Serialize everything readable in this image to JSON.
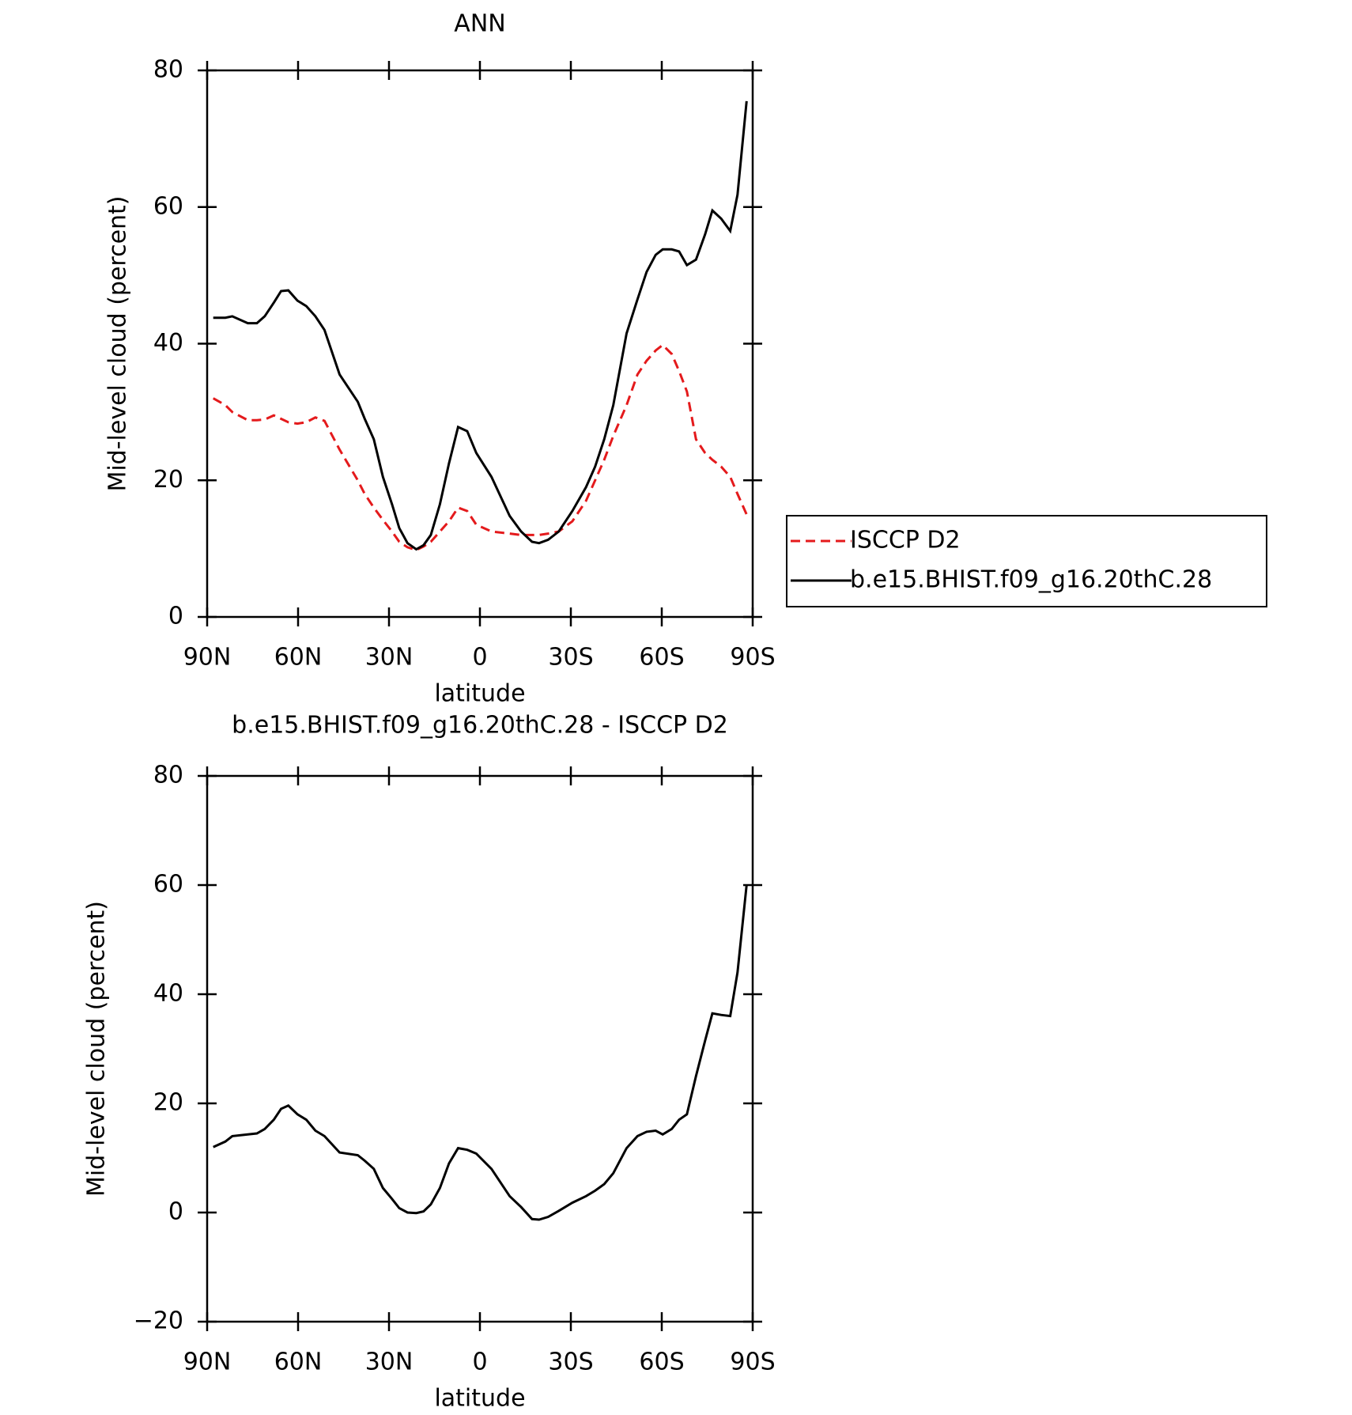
{
  "chart_data": [
    {
      "type": "line",
      "title": "ANN",
      "xlabel": "latitude",
      "ylabel": "Mid-level cloud (percent)",
      "x": [
        88,
        84,
        81.7,
        76.6,
        73.6,
        71,
        68,
        65.6,
        63.2,
        60.2,
        57.3,
        54.3,
        51.3,
        46.3,
        40.3,
        38,
        35,
        32,
        29,
        26.6,
        23.9,
        21,
        18.6,
        16.2,
        13.2,
        10.2,
        7.2,
        4.2,
        1.2,
        -3.8,
        -9.8,
        -13.6,
        -17.2,
        -19.5,
        -22.5,
        -26,
        -30.5,
        -35,
        -38,
        -41,
        -44,
        -48.4,
        -52,
        -55,
        -58,
        -60.3,
        -63.3,
        -65.7,
        -68.3,
        -71.3,
        -74.3,
        -76.7,
        -79.6,
        -82.6,
        -85,
        -88
      ],
      "xlim": [
        90,
        -90
      ],
      "xticks": [
        {
          "value": 90,
          "label": "90N"
        },
        {
          "value": 60,
          "label": "60N"
        },
        {
          "value": 30,
          "label": "30N"
        },
        0,
        {
          "value": -30,
          "label": "30S"
        },
        {
          "value": -60,
          "label": "60S"
        },
        {
          "value": -90,
          "label": "90S"
        }
      ],
      "ylim": [
        0,
        80
      ],
      "yticks": [
        0,
        20,
        40,
        60,
        80
      ],
      "series": [
        {
          "name": "ISCCP D2",
          "color": "#e41a1c",
          "dash": true,
          "values": [
            32,
            31,
            30,
            28.8,
            28.8,
            28.9,
            29.5,
            29,
            28.5,
            28.3,
            28.5,
            29.2,
            28.7,
            24.5,
            20,
            18,
            16,
            14.2,
            12.5,
            11,
            10.2,
            9.8,
            10.3,
            11,
            12.5,
            14,
            16,
            15.5,
            13.5,
            12.5,
            12.2,
            12,
            12,
            12,
            12.2,
            12.5,
            14,
            17,
            20,
            23,
            26.5,
            31,
            35.5,
            37.5,
            39,
            39.8,
            38.5,
            36,
            33,
            26,
            24,
            23,
            22,
            20.5,
            18,
            15
          ]
        },
        {
          "name": "b.e15.BHIST.f09_g16.20thC.28",
          "color": "#000000",
          "dash": false,
          "values": [
            43.8,
            43.8,
            44,
            43,
            43,
            44,
            46,
            47.7,
            47.8,
            46.3,
            45.5,
            44,
            42,
            35.5,
            31.5,
            29,
            26,
            20.5,
            16.5,
            13,
            10.8,
            9.9,
            10.5,
            12,
            16.5,
            22.5,
            27.8,
            27.2,
            24,
            20.5,
            14.8,
            12.5,
            11,
            10.8,
            11.3,
            12.5,
            15.5,
            19,
            22,
            26,
            31,
            41.5,
            46.5,
            50.5,
            53,
            53.8,
            53.8,
            53.5,
            51.5,
            52.3,
            56,
            59.5,
            58.3,
            56.5,
            61.8,
            75.5
          ]
        }
      ]
    },
    {
      "type": "line",
      "title": "b.e15.BHIST.f09_g16.20thC.28 - ISCCP D2",
      "xlabel": "latitude",
      "ylabel": "Mid-level cloud (percent)",
      "x": [
        88,
        84,
        81.7,
        76.6,
        73.6,
        71,
        68,
        65.6,
        63.2,
        60.2,
        57.3,
        54.3,
        51.3,
        46.3,
        40.3,
        38,
        35,
        32,
        29,
        26.6,
        23.9,
        21,
        18.6,
        16.2,
        13.2,
        10.2,
        7.2,
        4.2,
        1.2,
        -3.8,
        -9.8,
        -13.6,
        -17.2,
        -19.5,
        -22.5,
        -26,
        -30.5,
        -35,
        -38,
        -41,
        -44,
        -48.4,
        -52,
        -55,
        -58,
        -60.3,
        -63.3,
        -65.7,
        -68.3,
        -71.3,
        -74.3,
        -76.7,
        -79.6,
        -82.6,
        -85,
        -88
      ],
      "xlim": [
        90,
        -90
      ],
      "xticks": [
        {
          "value": 90,
          "label": "90N"
        },
        {
          "value": 60,
          "label": "60N"
        },
        {
          "value": 30,
          "label": "30N"
        },
        0,
        {
          "value": -30,
          "label": "30S"
        },
        {
          "value": -60,
          "label": "60S"
        },
        {
          "value": -90,
          "label": "90S"
        }
      ],
      "ylim": [
        -20,
        80
      ],
      "yticks": [
        {
          "value": -20,
          "label": "−20"
        },
        0,
        20,
        40,
        60,
        80
      ],
      "series": [
        {
          "color": "#000000",
          "dash": false,
          "values": [
            12,
            13,
            14,
            14.3,
            14.5,
            15.3,
            17,
            19,
            19.6,
            18,
            17,
            15,
            14,
            11,
            10.5,
            9.5,
            8,
            4.5,
            2.5,
            0.8,
            0,
            -0.1,
            0.2,
            1.5,
            4.5,
            9,
            11.8,
            11.5,
            10.8,
            8,
            3,
            1,
            -1.2,
            -1.3,
            -0.8,
            0.3,
            1.8,
            3,
            4,
            5.2,
            7.2,
            11.8,
            14,
            14.8,
            15,
            14.3,
            15.3,
            17,
            18,
            25,
            31.5,
            36.5,
            36.2,
            36,
            44,
            60
          ]
        }
      ]
    }
  ]
}
